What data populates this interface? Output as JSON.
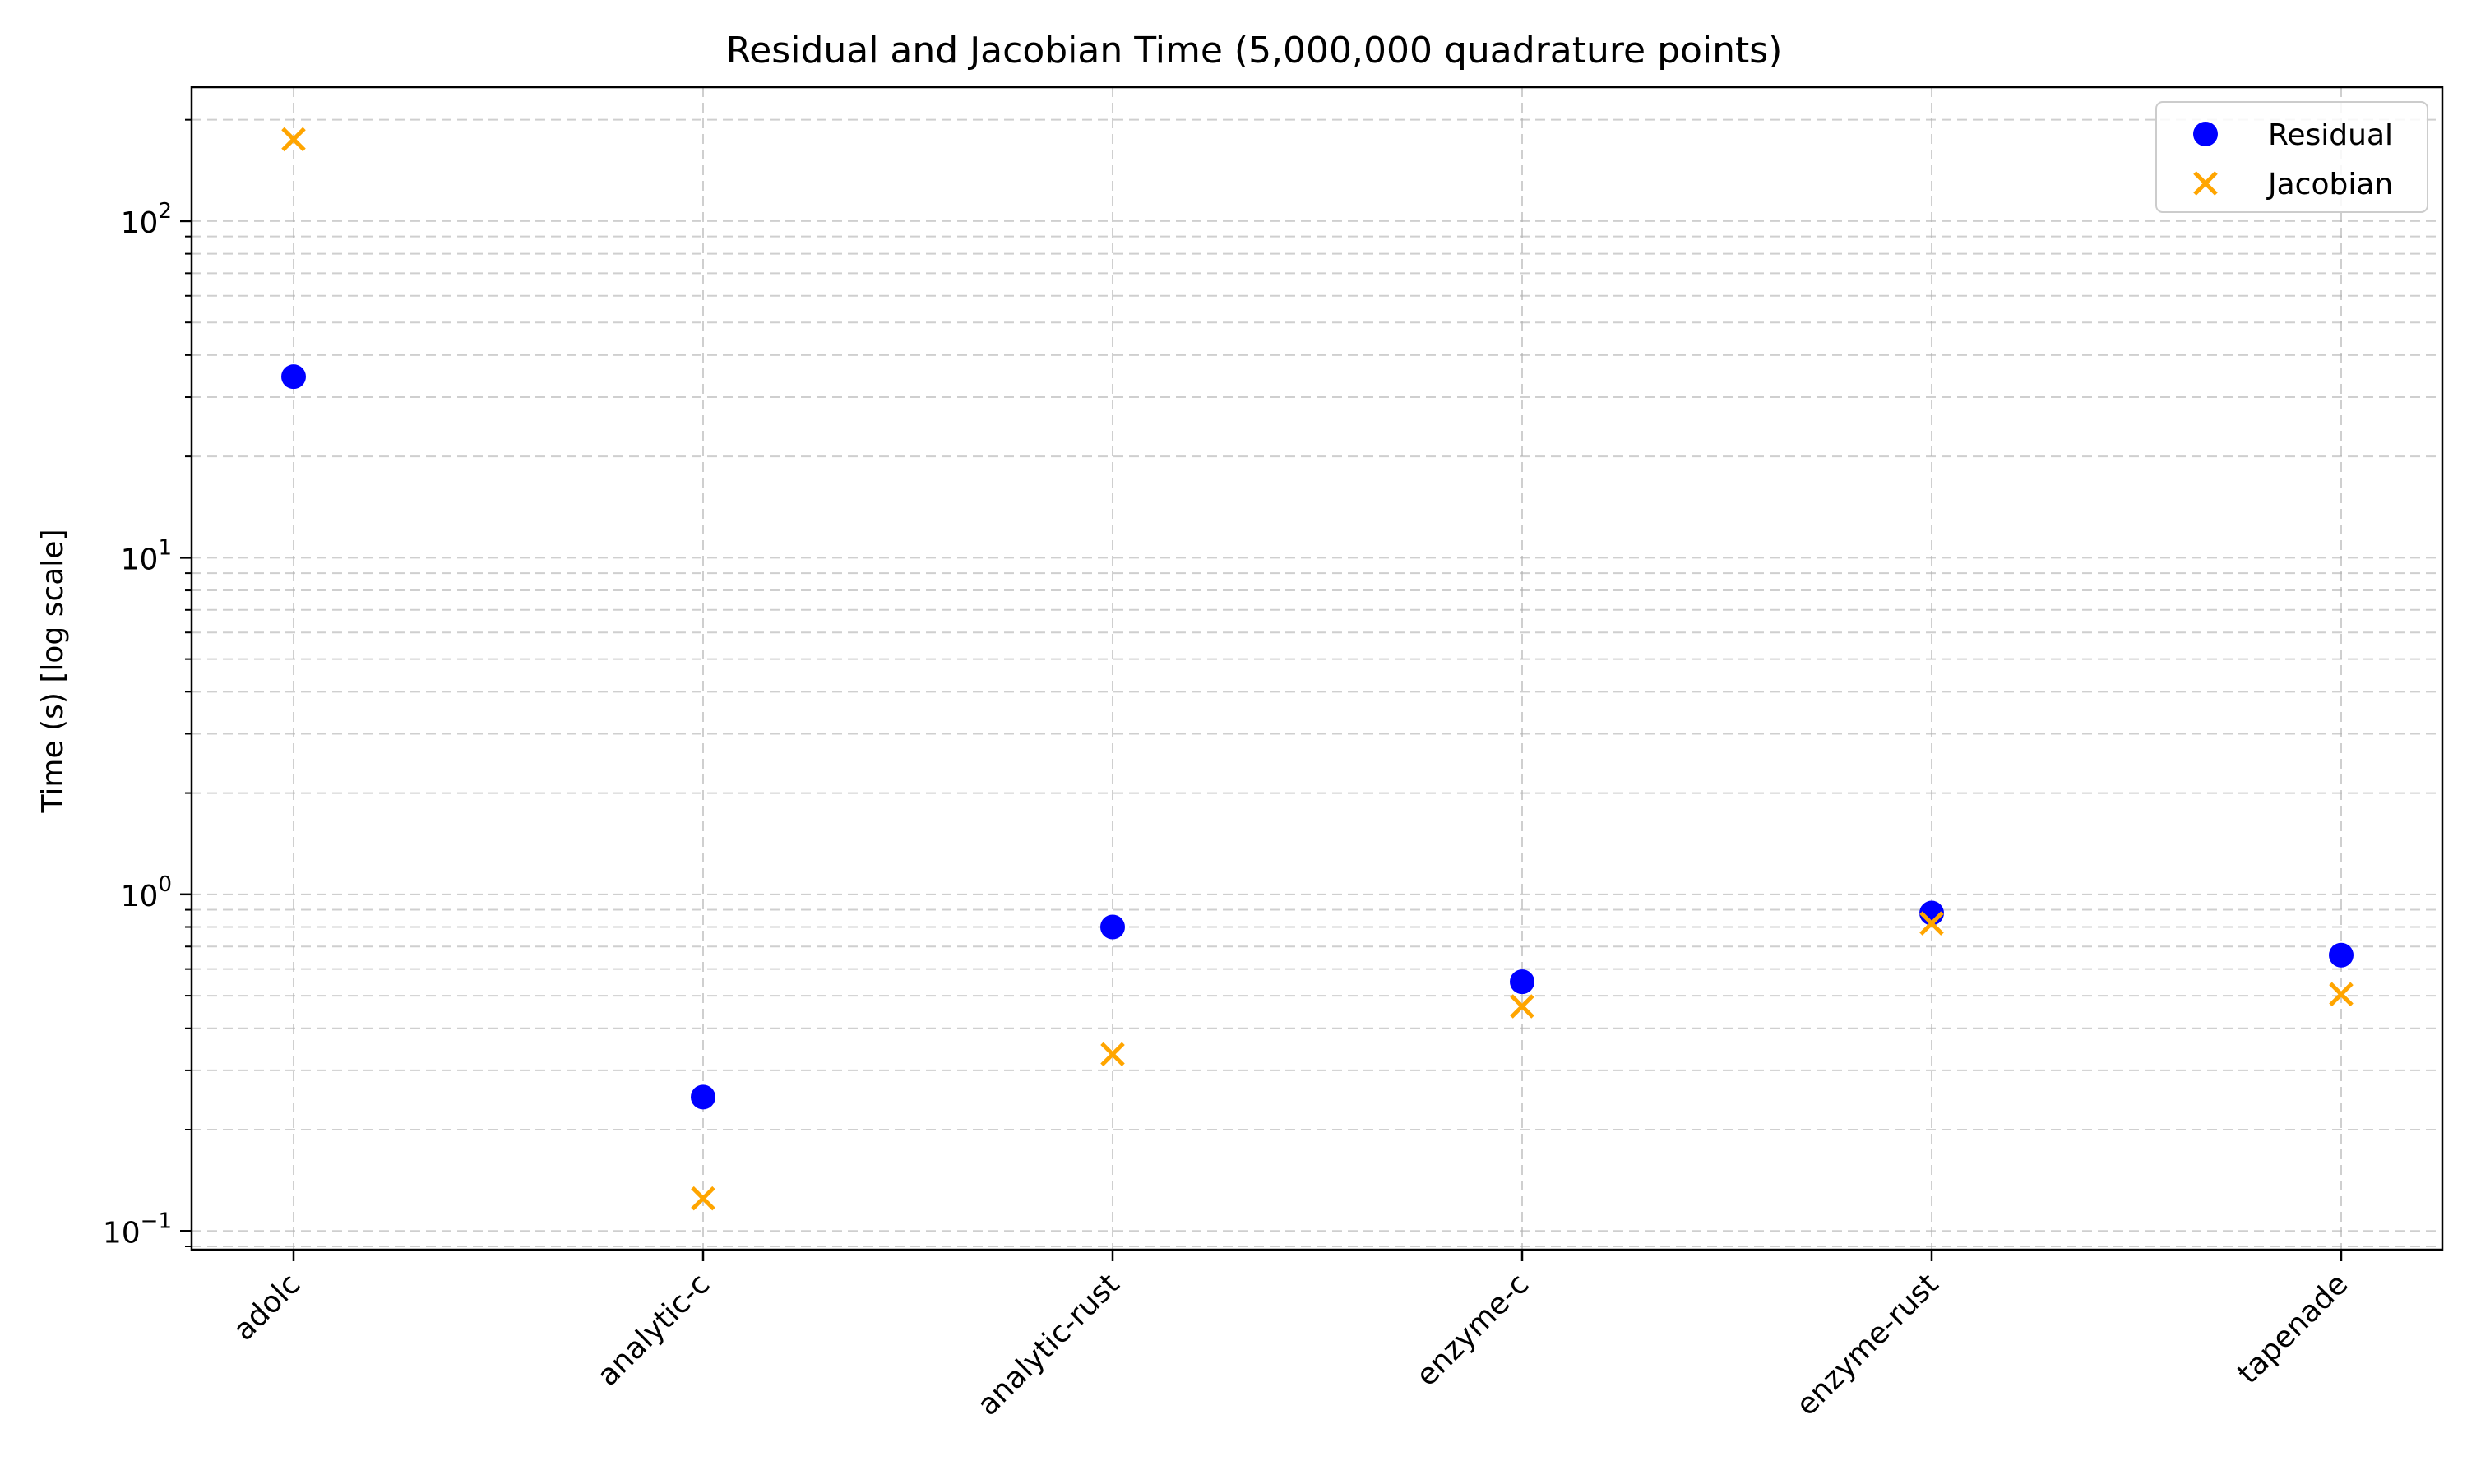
{
  "chart_data": {
    "type": "scatter",
    "title": "Residual and Jacobian Time (5,000,000 quadrature points)",
    "xlabel": "",
    "ylabel": "Time (s) [log scale]",
    "yscale": "log",
    "ylim": [
      0.088,
      250
    ],
    "categories": [
      "adolc",
      "analytic-c",
      "analytic-rust",
      "enzyme-c",
      "enzyme-rust",
      "tapenade"
    ],
    "series": [
      {
        "name": "Residual",
        "marker": "circle",
        "color": "#0000ff",
        "values": [
          34.5,
          0.25,
          0.8,
          0.55,
          0.88,
          0.66
        ]
      },
      {
        "name": "Jacobian",
        "marker": "x",
        "color": "#ffa500",
        "values": [
          175,
          0.125,
          0.335,
          0.465,
          0.82,
          0.505
        ]
      }
    ],
    "yticks": [
      {
        "value": 0.1,
        "base": "10",
        "exp": "−1"
      },
      {
        "value": 1,
        "base": "10",
        "exp": "0"
      },
      {
        "value": 10,
        "base": "10",
        "exp": "1"
      },
      {
        "value": 100,
        "base": "10",
        "exp": "2"
      }
    ],
    "grid": true,
    "legend_position": "top-right"
  }
}
